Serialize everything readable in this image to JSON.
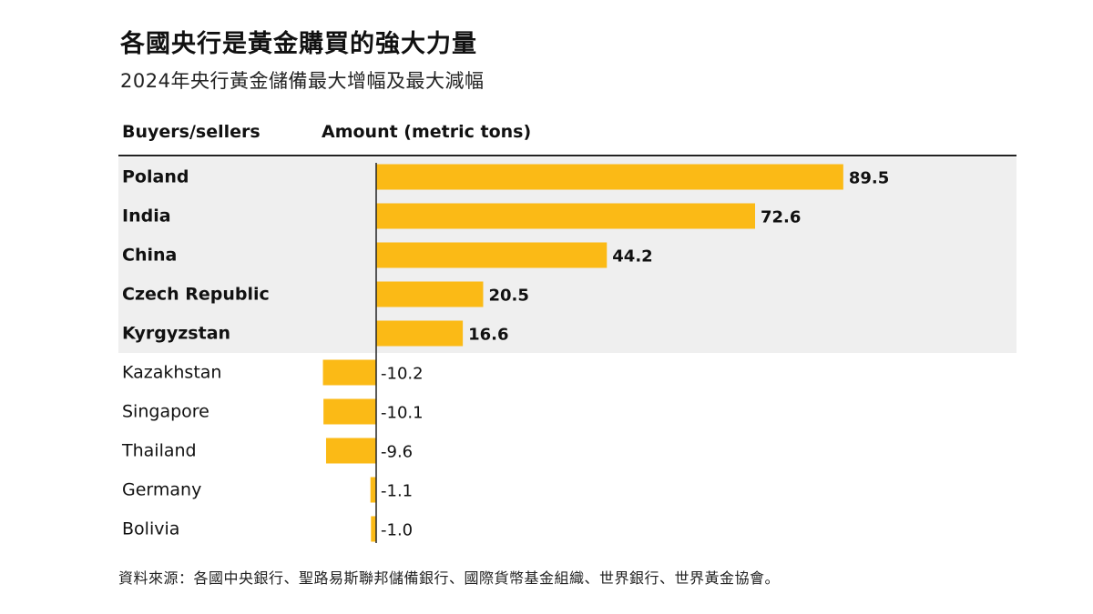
{
  "title": "各國央行是黃金購買的強大力量",
  "subtitle": "2024年央行黃金儲備最大增幅及最大減幅",
  "source": "資料來源：各國中央銀行、聖路易斯聯邦儲備銀行、國際貨幣基金組織、世界銀行、世界黃金協會。",
  "colors": {
    "bar": "#FBBA16",
    "highlight_band": "#EFEFEF",
    "axis": "#222222"
  },
  "chart_data": {
    "type": "bar",
    "orientation": "horizontal",
    "column_headers": {
      "category": "Buyers/sellers",
      "value": "Amount (metric tons)"
    },
    "categories": [
      "Poland",
      "India",
      "China",
      "Czech Republic",
      "Kyrgyzstan",
      "Kazakhstan",
      "Singapore",
      "Thailand",
      "Germany",
      "Bolivia"
    ],
    "values": [
      89.5,
      72.6,
      44.2,
      20.5,
      16.6,
      -10.2,
      -10.1,
      -9.6,
      -1.1,
      -1.0
    ],
    "value_labels": [
      "89.5",
      "72.6",
      "44.2",
      "20.5",
      "16.6",
      "-10.2",
      "-10.1",
      "-9.6",
      "-1.1",
      "-1.0"
    ],
    "xlim": [
      -10.2,
      89.5
    ],
    "grid": false,
    "highlighted_categories": [
      "Poland",
      "India",
      "China",
      "Czech Republic",
      "Kyrgyzstan"
    ]
  }
}
